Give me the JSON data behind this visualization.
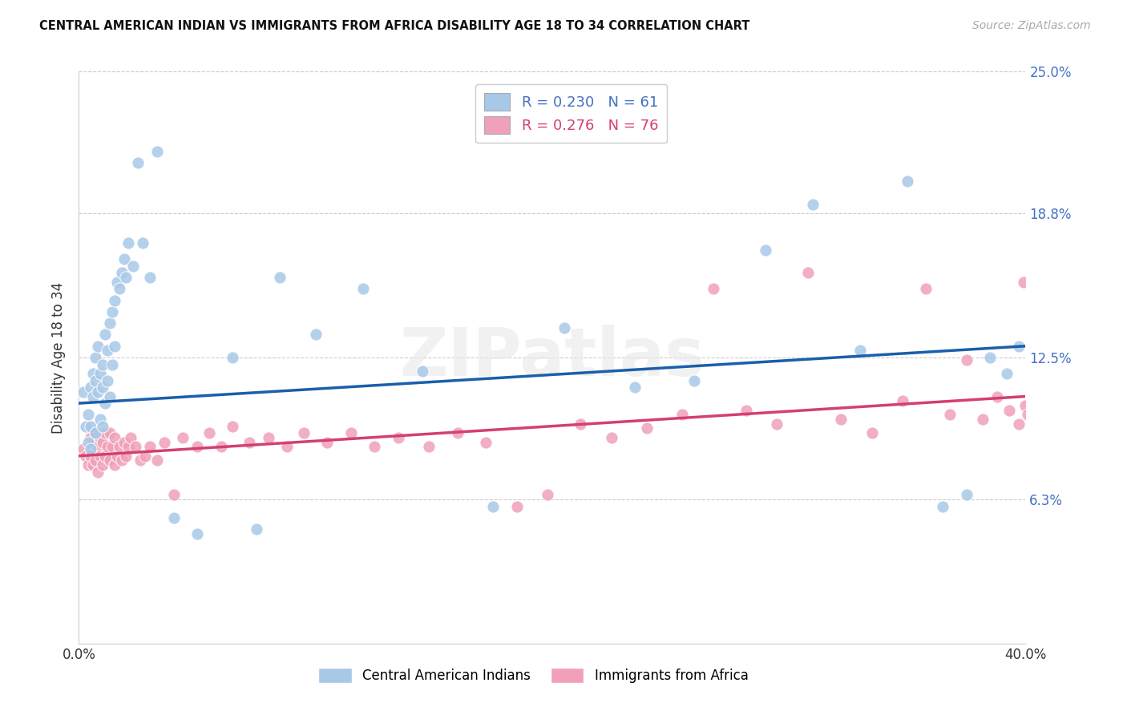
{
  "title": "CENTRAL AMERICAN INDIAN VS IMMIGRANTS FROM AFRICA DISABILITY AGE 18 TO 34 CORRELATION CHART",
  "source": "Source: ZipAtlas.com",
  "ylabel": "Disability Age 18 to 34",
  "xlim": [
    0.0,
    0.4
  ],
  "ylim": [
    0.0,
    0.25
  ],
  "ytick_positions": [
    0.063,
    0.125,
    0.188,
    0.25
  ],
  "ytick_labels": [
    "6.3%",
    "12.5%",
    "18.8%",
    "25.0%"
  ],
  "xtick_positions": [
    0.0,
    0.1,
    0.2,
    0.3,
    0.4
  ],
  "xtick_labels": [
    "0.0%",
    "",
    "",
    "",
    "40.0%"
  ],
  "blue_R": 0.23,
  "blue_N": 61,
  "pink_R": 0.276,
  "pink_N": 76,
  "blue_color": "#A8C8E8",
  "pink_color": "#F0A0B8",
  "blue_line_color": "#1A5FAB",
  "pink_line_color": "#D44070",
  "legend_label_blue": "Central American Indians",
  "legend_label_pink": "Immigrants from Africa",
  "watermark": "ZIPatlas",
  "blue_trend_x0": 0.0,
  "blue_trend_y0": 0.105,
  "blue_trend_x1": 0.4,
  "blue_trend_y1": 0.13,
  "pink_trend_x0": 0.0,
  "pink_trend_y0": 0.082,
  "pink_trend_x1": 0.4,
  "pink_trend_y1": 0.108,
  "blue_x": [
    0.002,
    0.003,
    0.004,
    0.004,
    0.005,
    0.005,
    0.005,
    0.006,
    0.006,
    0.007,
    0.007,
    0.007,
    0.008,
    0.008,
    0.009,
    0.009,
    0.01,
    0.01,
    0.01,
    0.011,
    0.011,
    0.012,
    0.012,
    0.013,
    0.013,
    0.014,
    0.014,
    0.015,
    0.015,
    0.016,
    0.017,
    0.018,
    0.019,
    0.02,
    0.021,
    0.023,
    0.025,
    0.027,
    0.03,
    0.033,
    0.04,
    0.05,
    0.065,
    0.075,
    0.085,
    0.1,
    0.12,
    0.145,
    0.175,
    0.205,
    0.235,
    0.26,
    0.29,
    0.31,
    0.33,
    0.35,
    0.365,
    0.375,
    0.385,
    0.392,
    0.397
  ],
  "blue_y": [
    0.11,
    0.095,
    0.1,
    0.088,
    0.112,
    0.095,
    0.085,
    0.108,
    0.118,
    0.115,
    0.125,
    0.092,
    0.13,
    0.11,
    0.118,
    0.098,
    0.122,
    0.112,
    0.095,
    0.135,
    0.105,
    0.128,
    0.115,
    0.14,
    0.108,
    0.145,
    0.122,
    0.15,
    0.13,
    0.158,
    0.155,
    0.162,
    0.168,
    0.16,
    0.175,
    0.165,
    0.21,
    0.175,
    0.16,
    0.215,
    0.055,
    0.048,
    0.125,
    0.05,
    0.16,
    0.135,
    0.155,
    0.119,
    0.06,
    0.138,
    0.112,
    0.115,
    0.172,
    0.192,
    0.128,
    0.202,
    0.06,
    0.065,
    0.125,
    0.118,
    0.13
  ],
  "pink_x": [
    0.002,
    0.003,
    0.004,
    0.005,
    0.005,
    0.006,
    0.006,
    0.007,
    0.007,
    0.008,
    0.008,
    0.009,
    0.009,
    0.01,
    0.01,
    0.011,
    0.011,
    0.012,
    0.013,
    0.013,
    0.014,
    0.015,
    0.015,
    0.016,
    0.017,
    0.018,
    0.019,
    0.02,
    0.021,
    0.022,
    0.024,
    0.026,
    0.028,
    0.03,
    0.033,
    0.036,
    0.04,
    0.044,
    0.05,
    0.055,
    0.06,
    0.065,
    0.072,
    0.08,
    0.088,
    0.095,
    0.105,
    0.115,
    0.125,
    0.135,
    0.148,
    0.16,
    0.172,
    0.185,
    0.198,
    0.212,
    0.225,
    0.24,
    0.255,
    0.268,
    0.282,
    0.295,
    0.308,
    0.322,
    0.335,
    0.348,
    0.358,
    0.368,
    0.375,
    0.382,
    0.388,
    0.393,
    0.397,
    0.399,
    0.4,
    0.401
  ],
  "pink_y": [
    0.085,
    0.082,
    0.078,
    0.09,
    0.082,
    0.088,
    0.078,
    0.092,
    0.08,
    0.086,
    0.075,
    0.09,
    0.082,
    0.088,
    0.078,
    0.092,
    0.082,
    0.086,
    0.08,
    0.092,
    0.086,
    0.09,
    0.078,
    0.082,
    0.086,
    0.08,
    0.088,
    0.082,
    0.086,
    0.09,
    0.086,
    0.08,
    0.082,
    0.086,
    0.08,
    0.088,
    0.065,
    0.09,
    0.086,
    0.092,
    0.086,
    0.095,
    0.088,
    0.09,
    0.086,
    0.092,
    0.088,
    0.092,
    0.086,
    0.09,
    0.086,
    0.092,
    0.088,
    0.06,
    0.065,
    0.096,
    0.09,
    0.094,
    0.1,
    0.155,
    0.102,
    0.096,
    0.162,
    0.098,
    0.092,
    0.106,
    0.155,
    0.1,
    0.124,
    0.098,
    0.108,
    0.102,
    0.096,
    0.158,
    0.104,
    0.1
  ]
}
